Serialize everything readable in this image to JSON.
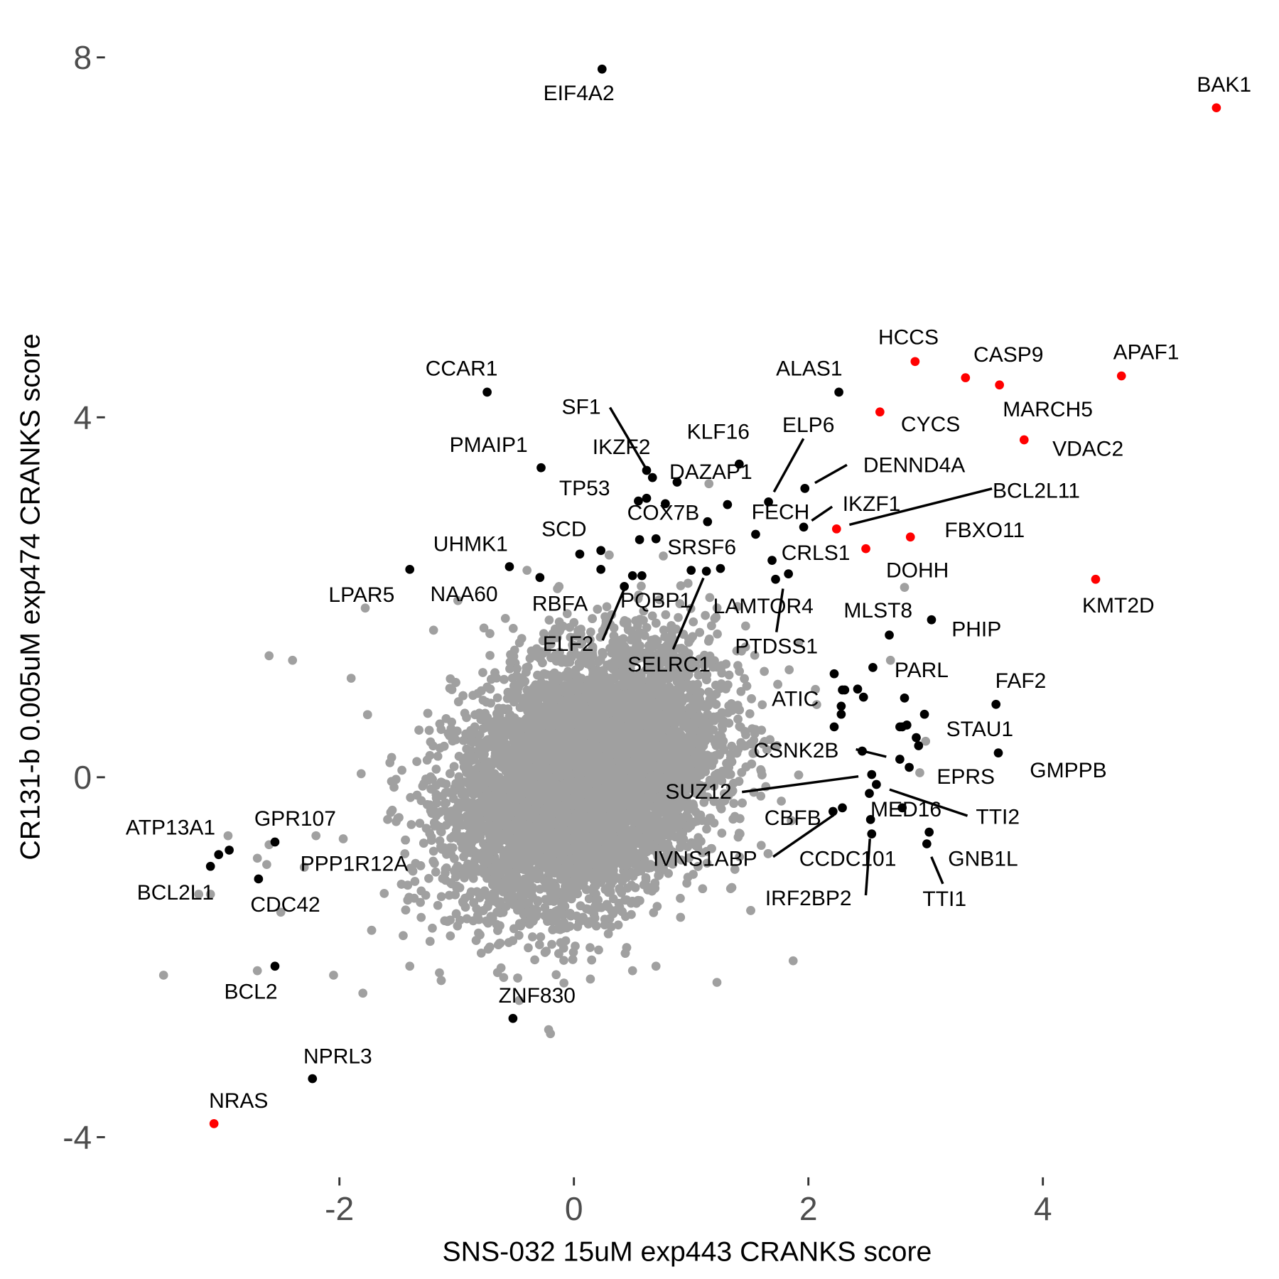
{
  "chart_data": {
    "type": "scatter",
    "title": "",
    "xlabel": "SNS-032 15uM exp443 CRANKS score",
    "ylabel": "CR131-b 0.005uM exp474 CRANKS score",
    "xlim": [
      -3.5,
      5.8
    ],
    "ylim": [
      -4.3,
      8.3
    ],
    "xticks": [
      -2,
      0,
      2,
      4
    ],
    "yticks": [
      -4,
      0,
      4,
      8
    ],
    "xtick_labels": [
      "-2",
      "0",
      "2",
      "4"
    ],
    "ytick_labels": [
      "-4",
      "0",
      "4",
      "8"
    ],
    "grid": false,
    "colors": {
      "background": "#a0a0a0",
      "highlight": "#ff0000",
      "labeled": "#000000"
    },
    "background_cloud": {
      "n": 9000,
      "x_mean": 0.1,
      "y_mean": 0.0,
      "x_sd": 0.55,
      "y_sd": 0.7,
      "correlation": 0.3
    },
    "background_outliers": [
      [
        -1.78,
        1.88
      ],
      [
        2.82,
        2.11
      ],
      [
        -2.4,
        1.3
      ],
      [
        -2.6,
        1.35
      ],
      [
        -1.9,
        1.1
      ],
      [
        -2.7,
        -0.9
      ],
      [
        -3.2,
        -1.3
      ],
      [
        -3.5,
        -2.2
      ],
      [
        -2.7,
        -2.15
      ],
      [
        -2.05,
        -2.2
      ],
      [
        -1.8,
        -2.4
      ],
      [
        -1.4,
        -2.1
      ],
      [
        -0.2,
        -2.85
      ],
      [
        1.22,
        -2.28
      ],
      [
        1.87,
        -2.04
      ],
      [
        0.7,
        -2.1
      ],
      [
        0.5,
        -2.15
      ],
      [
        -2.6,
        -0.75
      ],
      [
        -2.95,
        -0.65
      ],
      [
        -2.2,
        -0.65
      ],
      [
        2.7,
        1.3
      ],
      [
        3.0,
        0.4
      ],
      [
        2.95,
        0.05
      ],
      [
        -2.3,
        -1.0
      ],
      [
        -0.4,
        2.3
      ],
      [
        -3.1,
        -1.3
      ],
      [
        -2.5,
        -1.5
      ]
    ],
    "points": [
      {
        "label": "EIF4A2",
        "x": 0.24,
        "y": 7.87,
        "group": "labeled"
      },
      {
        "label": "BAK1",
        "x": 5.48,
        "y": 7.44,
        "group": "highlight"
      },
      {
        "label": "HCCS",
        "x": 2.91,
        "y": 4.62,
        "group": "highlight"
      },
      {
        "label": "CASP9",
        "x": 3.34,
        "y": 4.44,
        "group": "highlight"
      },
      {
        "label": "APAF1",
        "x": 4.67,
        "y": 4.46,
        "group": "highlight"
      },
      {
        "label": "MARCH5",
        "x": 3.63,
        "y": 4.36,
        "group": "highlight"
      },
      {
        "label": "CYCS",
        "x": 2.61,
        "y": 4.06,
        "group": "highlight"
      },
      {
        "label": "VDAC2",
        "x": 3.84,
        "y": 3.75,
        "group": "highlight"
      },
      {
        "label": "BCL2L11",
        "x": 2.24,
        "y": 2.76,
        "group": "highlight"
      },
      {
        "label": "FBXO11",
        "x": 2.87,
        "y": 2.67,
        "group": "highlight"
      },
      {
        "label": "DOHH",
        "x": 2.49,
        "y": 2.54,
        "group": "highlight"
      },
      {
        "label": "KMT2D",
        "x": 4.45,
        "y": 2.2,
        "group": "highlight"
      },
      {
        "label": "NRAS",
        "x": -3.07,
        "y": -3.85,
        "group": "highlight"
      },
      {
        "label": "CCAR1",
        "x": -0.74,
        "y": 4.28,
        "group": "labeled"
      },
      {
        "label": "ALAS1",
        "x": 2.26,
        "y": 4.28,
        "group": "labeled"
      },
      {
        "label": "PMAIP1",
        "x": -0.28,
        "y": 3.44,
        "group": "labeled"
      },
      {
        "label": "KLF16",
        "x": 1.41,
        "y": 3.48,
        "group": "labeled"
      },
      {
        "label": "ELP6",
        "x": 1.66,
        "y": 3.06,
        "group": "labeled"
      },
      {
        "label": "DENND4A",
        "x": 1.97,
        "y": 3.21,
        "group": "labeled"
      },
      {
        "label": "IKZF2",
        "x": 0.62,
        "y": 3.41,
        "group": "labeled"
      },
      {
        "label": "SF1",
        "x": 0.67,
        "y": 3.33,
        "group": "labeled"
      },
      {
        "label": "DAZAP1",
        "x": 0.88,
        "y": 3.28,
        "group": "labeled"
      },
      {
        "label": "TP53",
        "x": 0.55,
        "y": 3.07,
        "group": "labeled"
      },
      {
        "label": "COX7B",
        "x": 0.78,
        "y": 3.04,
        "group": "labeled"
      },
      {
        "label": "FECH",
        "x": 1.55,
        "y": 2.7,
        "group": "labeled"
      },
      {
        "label": "IKZF1",
        "x": 1.96,
        "y": 2.78,
        "group": "labeled"
      },
      {
        "label": "SCD",
        "x": 0.05,
        "y": 2.48,
        "group": "labeled"
      },
      {
        "label": "UHMK1",
        "x": -0.55,
        "y": 2.34,
        "group": "labeled"
      },
      {
        "label": "LPAR5",
        "x": -1.4,
        "y": 2.31,
        "group": "labeled"
      },
      {
        "label": "NAA60",
        "x": -0.29,
        "y": 2.22,
        "group": "labeled"
      },
      {
        "label": "RBFA",
        "x": 0.23,
        "y": 2.31,
        "group": "labeled"
      },
      {
        "label": "PQBP1",
        "x": 0.58,
        "y": 2.24,
        "group": "labeled"
      },
      {
        "label": "ELF2",
        "x": 0.43,
        "y": 2.12,
        "group": "labeled"
      },
      {
        "label": "SRSF6",
        "x": 1.0,
        "y": 2.3,
        "group": "labeled"
      },
      {
        "label": "SELRC1",
        "x": 1.13,
        "y": 2.29,
        "group": "labeled"
      },
      {
        "label": "CRLS1",
        "x": 1.69,
        "y": 2.41,
        "group": "labeled"
      },
      {
        "label": "LAMTOR4",
        "x": 1.83,
        "y": 2.26,
        "group": "labeled"
      },
      {
        "label": "PTDSS1",
        "x": 1.72,
        "y": 2.2,
        "group": "labeled"
      },
      {
        "label": "MLST8",
        "x": 2.69,
        "y": 1.58,
        "group": "labeled"
      },
      {
        "label": "PHIP",
        "x": 3.05,
        "y": 1.75,
        "group": "labeled"
      },
      {
        "label": "PARL",
        "x": 2.55,
        "y": 1.22,
        "group": "labeled"
      },
      {
        "label": "FAF2",
        "x": 3.6,
        "y": 0.81,
        "group": "labeled"
      },
      {
        "label": "ATIC",
        "x": 2.31,
        "y": 0.97,
        "group": "labeled"
      },
      {
        "label": "STAU1",
        "x": 2.8,
        "y": 0.56,
        "group": "labeled"
      },
      {
        "label": "GMPPB",
        "x": 3.62,
        "y": 0.27,
        "group": "labeled"
      },
      {
        "label": "CSNK2B",
        "x": 2.46,
        "y": 0.29,
        "group": "labeled"
      },
      {
        "label": "EPRS",
        "x": 2.86,
        "y": 0.11,
        "group": "labeled"
      },
      {
        "label": "SUZ12",
        "x": 2.54,
        "y": 0.03,
        "group": "labeled"
      },
      {
        "label": "TTI2",
        "x": 2.58,
        "y": -0.08,
        "group": "labeled"
      },
      {
        "label": "MED16",
        "x": 2.8,
        "y": -0.34,
        "group": "labeled"
      },
      {
        "label": "CBFB",
        "x": 2.29,
        "y": -0.34,
        "group": "labeled"
      },
      {
        "label": "IVNS1ABP",
        "x": 2.21,
        "y": -0.38,
        "group": "labeled"
      },
      {
        "label": "CCDC101",
        "x": 2.53,
        "y": -0.47,
        "group": "labeled"
      },
      {
        "label": "IRF2BP2",
        "x": 2.54,
        "y": -0.63,
        "group": "labeled"
      },
      {
        "label": "GNB1L",
        "x": 3.03,
        "y": -0.61,
        "group": "labeled"
      },
      {
        "label": "TTI1",
        "x": 3.01,
        "y": -0.74,
        "group": "labeled"
      },
      {
        "label": "ATP13A1",
        "x": -2.94,
        "y": -0.81,
        "group": "labeled"
      },
      {
        "label": "BCL2L1",
        "x": -3.1,
        "y": -0.99,
        "group": "labeled"
      },
      {
        "label": "GPR107",
        "x": -2.55,
        "y": -0.72,
        "group": "labeled"
      },
      {
        "label": "PPP1R12A",
        "x": -2.62,
        "y": -0.97,
        "group": "background"
      },
      {
        "label": "CDC42",
        "x": -2.69,
        "y": -1.13,
        "group": "labeled"
      },
      {
        "label": "BCL2",
        "x": -2.55,
        "y": -2.1,
        "group": "labeled"
      },
      {
        "label": "ZNF830",
        "x": -0.52,
        "y": -2.68,
        "group": "labeled"
      },
      {
        "label": "NPRL3",
        "x": -2.23,
        "y": -3.35,
        "group": "labeled"
      }
    ],
    "unlabeled_black_points": [
      [
        -3.03,
        -0.86
      ],
      [
        2.22,
        1.15
      ],
      [
        2.29,
        0.97
      ],
      [
        2.42,
        0.98
      ],
      [
        2.47,
        0.89
      ],
      [
        2.28,
        0.79
      ],
      [
        2.28,
        0.7
      ],
      [
        2.22,
        0.56
      ],
      [
        2.82,
        0.88
      ],
      [
        2.78,
        0.56
      ],
      [
        2.84,
        0.58
      ],
      [
        2.92,
        0.44
      ],
      [
        2.78,
        0.2
      ],
      [
        2.94,
        0.35
      ],
      [
        2.99,
        0.7
      ],
      [
        0.62,
        3.1
      ],
      [
        1.14,
        2.84
      ],
      [
        0.23,
        2.52
      ],
      [
        0.56,
        2.64
      ],
      [
        0.7,
        2.65
      ],
      [
        0.5,
        2.24
      ],
      [
        1.25,
        2.32
      ],
      [
        2.52,
        -0.18
      ],
      [
        1.31,
        3.03
      ]
    ]
  }
}
